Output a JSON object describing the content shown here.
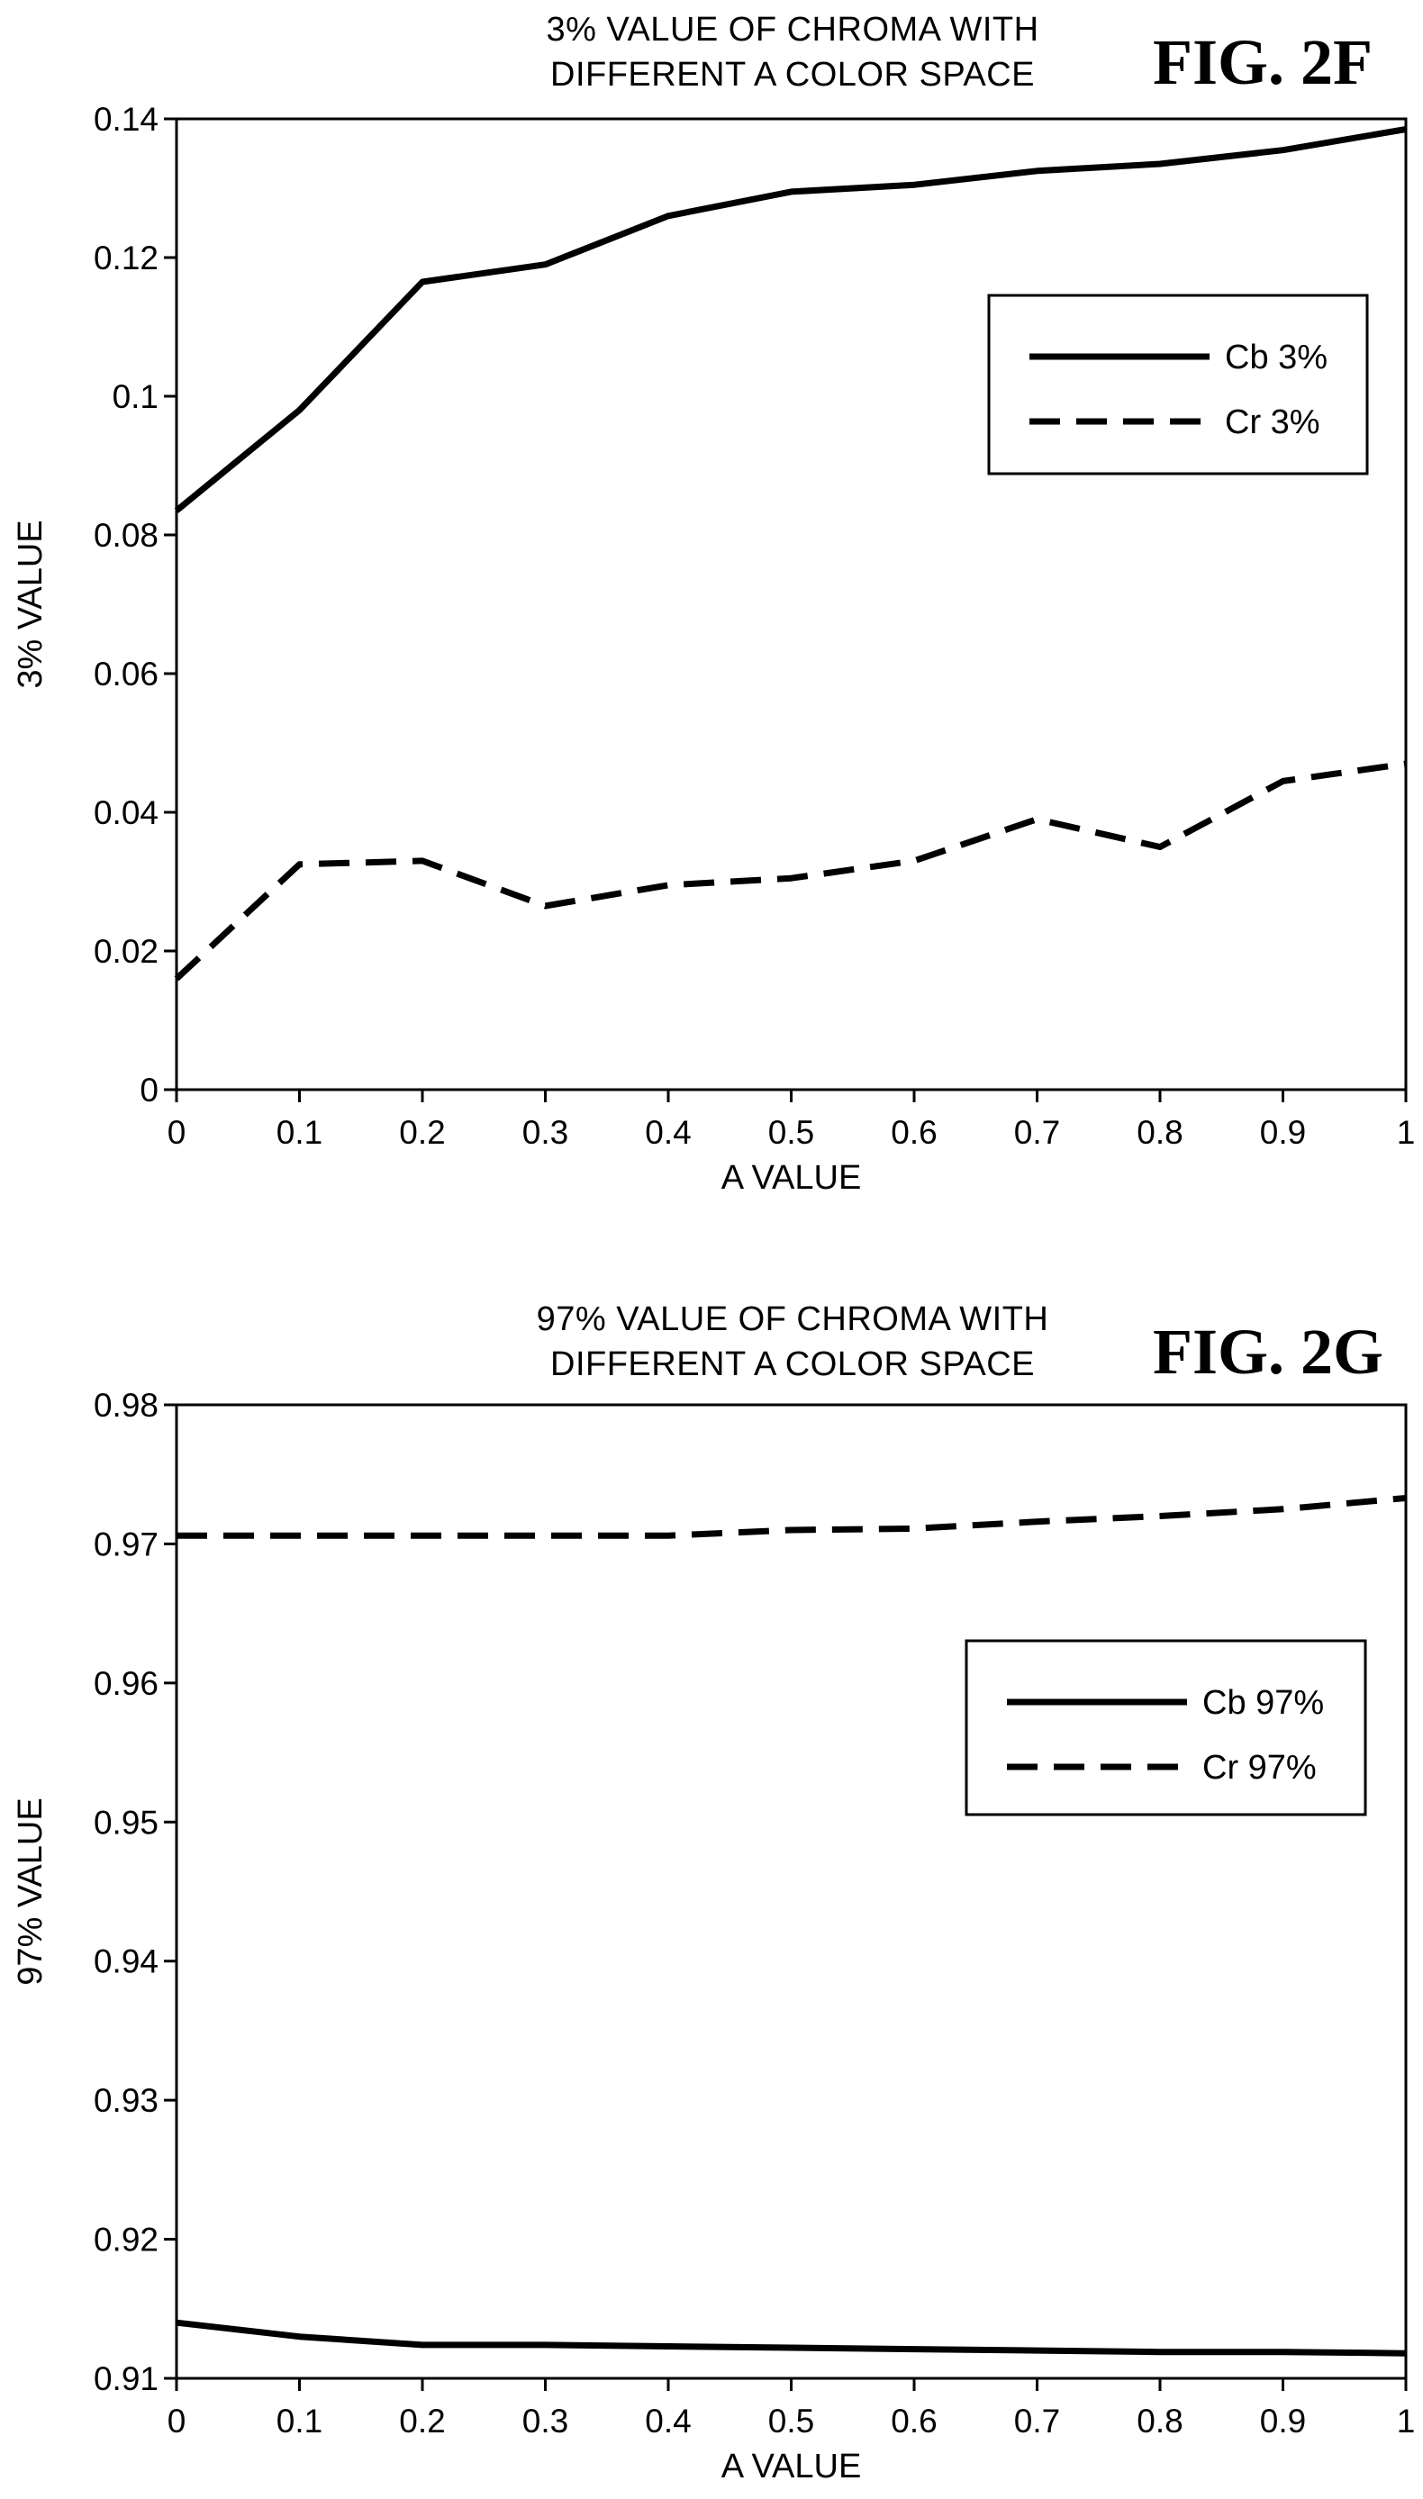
{
  "chart_data": [
    {
      "type": "line",
      "figure_label": "FIG. 2F",
      "title_line1": "3% VALUE OF CHROMA WITH",
      "title_line2": "DIFFERENT A COLOR SPACE",
      "xlabel": "A VALUE",
      "ylabel": "3% VALUE",
      "x": [
        0,
        0.1,
        0.2,
        0.3,
        0.4,
        0.5,
        0.6,
        0.7,
        0.8,
        0.9,
        1
      ],
      "x_tick_labels": [
        "0",
        "0.1",
        "0.2",
        "0.3",
        "0.4",
        "0.5",
        "0.6",
        "0.7",
        "0.8",
        "0.9",
        "1"
      ],
      "ylim": [
        0,
        0.14
      ],
      "y_ticks": [
        0,
        0.02,
        0.04,
        0.06,
        0.08,
        0.1,
        0.12,
        0.14
      ],
      "y_tick_labels": [
        "0",
        "0.02",
        "0.04",
        "0.06",
        "0.08",
        "0.1",
        "0.12",
        "0.14"
      ],
      "grid": false,
      "legend_position": "upper-right",
      "series": [
        {
          "name": "Cb 3%",
          "style": "solid",
          "values": [
            0.0835,
            0.098,
            0.1165,
            0.119,
            0.126,
            0.1295,
            0.1305,
            0.1325,
            0.1335,
            0.1355,
            0.1385
          ]
        },
        {
          "name": "Cr 3%",
          "style": "dashed",
          "values": [
            0.016,
            0.0325,
            0.033,
            0.0265,
            0.0295,
            0.0305,
            0.033,
            0.039,
            0.035,
            0.0445,
            0.047
          ]
        }
      ]
    },
    {
      "type": "line",
      "figure_label": "FIG. 2G",
      "title_line1": "97% VALUE OF CHROMA WITH",
      "title_line2": "DIFFERENT A COLOR SPACE",
      "xlabel": "A VALUE",
      "ylabel": "97% VALUE",
      "x": [
        0,
        0.1,
        0.2,
        0.3,
        0.4,
        0.5,
        0.6,
        0.7,
        0.8,
        0.9,
        1
      ],
      "x_tick_labels": [
        "0",
        "0.1",
        "0.2",
        "0.3",
        "0.4",
        "0.5",
        "0.6",
        "0.7",
        "0.8",
        "0.9",
        "1"
      ],
      "ylim": [
        0.91,
        0.98
      ],
      "y_ticks": [
        0.91,
        0.92,
        0.93,
        0.94,
        0.95,
        0.96,
        0.97,
        0.98
      ],
      "y_tick_labels": [
        "0.91",
        "0.92",
        "0.93",
        "0.94",
        "0.95",
        "0.96",
        "0.97",
        "0.98"
      ],
      "grid": false,
      "legend_position": "upper-right",
      "series": [
        {
          "name": "Cb 97%",
          "style": "solid",
          "values": [
            0.914,
            0.913,
            0.9124,
            0.9124,
            0.9123,
            0.9122,
            0.9121,
            0.912,
            0.9119,
            0.9119,
            0.9118
          ]
        },
        {
          "name": "Cr 97%",
          "style": "dashed",
          "values": [
            0.9706,
            0.9706,
            0.9706,
            0.9706,
            0.9706,
            0.971,
            0.9711,
            0.9716,
            0.972,
            0.9725,
            0.9733
          ]
        }
      ]
    }
  ]
}
